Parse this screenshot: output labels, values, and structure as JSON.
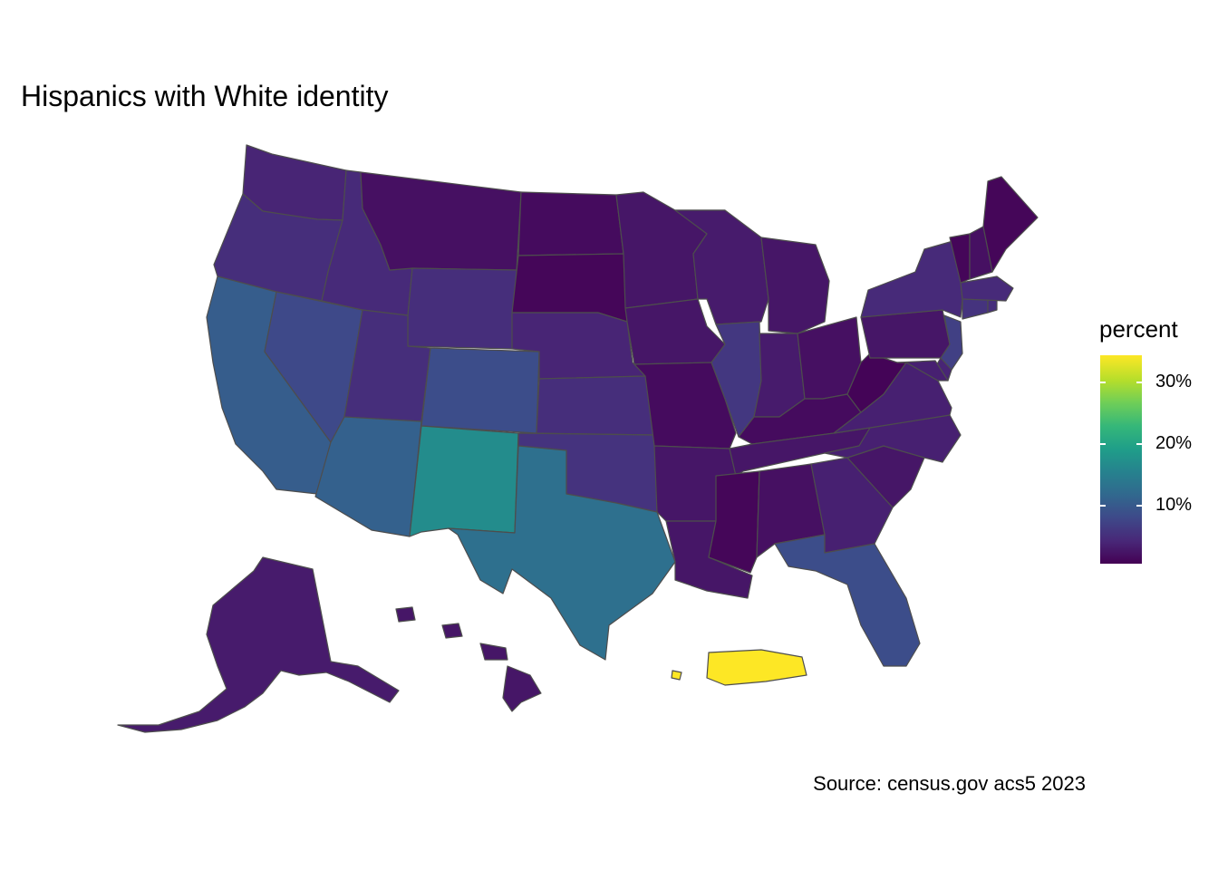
{
  "title": "Hispanics with White identity",
  "caption": "Source: census.gov acs5 2023",
  "legend": {
    "title": "percent",
    "labels": [
      "10%",
      "20%",
      "30%"
    ],
    "range": [
      0.5,
      34.5
    ],
    "palette": "viridis"
  },
  "states": [
    {
      "name": "Washington",
      "value": 4.0
    },
    {
      "name": "Oregon",
      "value": 5.0
    },
    {
      "name": "California",
      "value": 10.5
    },
    {
      "name": "Nevada",
      "value": 8.0
    },
    {
      "name": "Idaho",
      "value": 4.5
    },
    {
      "name": "Montana",
      "value": 2.0
    },
    {
      "name": "Wyoming",
      "value": 5.0
    },
    {
      "name": "Utah",
      "value": 5.0
    },
    {
      "name": "Arizona",
      "value": 11.0
    },
    {
      "name": "Colorado",
      "value": 8.5
    },
    {
      "name": "New Mexico",
      "value": 17.0
    },
    {
      "name": "North Dakota",
      "value": 1.5
    },
    {
      "name": "South Dakota",
      "value": 1.0
    },
    {
      "name": "Nebraska",
      "value": 4.0
    },
    {
      "name": "Kansas",
      "value": 5.0
    },
    {
      "name": "Oklahoma",
      "value": 5.5
    },
    {
      "name": "Texas",
      "value": 13.0
    },
    {
      "name": "Minnesota",
      "value": 2.5
    },
    {
      "name": "Iowa",
      "value": 2.5
    },
    {
      "name": "Missouri",
      "value": 1.5
    },
    {
      "name": "Arkansas",
      "value": 2.5
    },
    {
      "name": "Louisiana",
      "value": 2.5
    },
    {
      "name": "Wisconsin",
      "value": 3.0
    },
    {
      "name": "Illinois",
      "value": 6.0
    },
    {
      "name": "Michigan",
      "value": 2.5
    },
    {
      "name": "Indiana",
      "value": 3.0
    },
    {
      "name": "Ohio",
      "value": 2.0
    },
    {
      "name": "Kentucky",
      "value": 1.5
    },
    {
      "name": "Tennessee",
      "value": 2.5
    },
    {
      "name": "Mississippi",
      "value": 1.0
    },
    {
      "name": "Alabama",
      "value": 2.0
    },
    {
      "name": "Georgia",
      "value": 3.5
    },
    {
      "name": "Florida",
      "value": 8.5
    },
    {
      "name": "South Carolina",
      "value": 2.5
    },
    {
      "name": "North Carolina",
      "value": 3.5
    },
    {
      "name": "Virginia",
      "value": 3.5
    },
    {
      "name": "West Virginia",
      "value": 0.8
    },
    {
      "name": "Pennsylvania",
      "value": 2.5
    },
    {
      "name": "New York",
      "value": 4.5
    },
    {
      "name": "New Jersey",
      "value": 7.0
    },
    {
      "name": "Delaware",
      "value": 4.0
    },
    {
      "name": "Maryland",
      "value": 3.5
    },
    {
      "name": "Connecticut",
      "value": 5.5
    },
    {
      "name": "Rhode Island",
      "value": 5.0
    },
    {
      "name": "Massachusetts",
      "value": 4.5
    },
    {
      "name": "Vermont",
      "value": 1.0
    },
    {
      "name": "New Hampshire",
      "value": 2.0
    },
    {
      "name": "Maine",
      "value": 1.0
    },
    {
      "name": "Alaska",
      "value": 3.0
    },
    {
      "name": "Hawaii",
      "value": 2.5
    },
    {
      "name": "Puerto Rico",
      "value": 34.5
    }
  ]
}
